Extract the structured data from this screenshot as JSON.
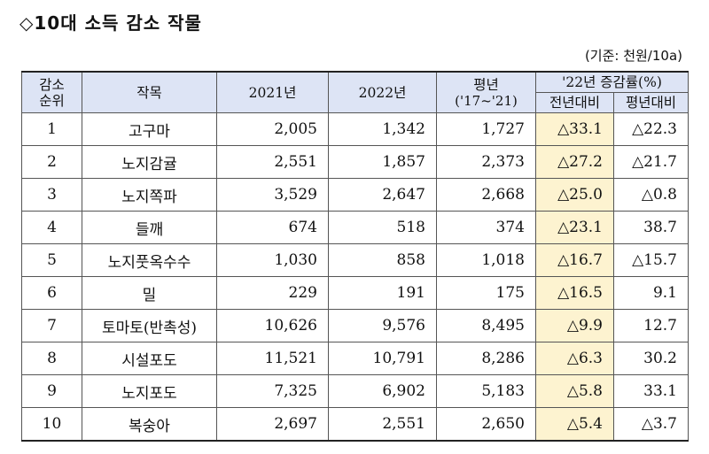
{
  "title": "◇10대 소득 감소 작물",
  "unit": "(기준: 천원/10a)",
  "headers": {
    "rank_line1": "감소",
    "rank_line2": "순위",
    "crop": "작목",
    "y2021": "2021년",
    "y2022": "2022년",
    "avg_line1": "평년",
    "avg_line2": "('17~'21)",
    "change": "'22년 증감률(%)",
    "vs_prev": "전년대비",
    "vs_avg": "평년대비"
  },
  "rows": [
    {
      "rank": "1",
      "crop": "고구마",
      "y2021": "2,005",
      "y2022": "1,342",
      "avg": "1,727",
      "vs_prev": "△33.1",
      "vs_avg": "△22.3"
    },
    {
      "rank": "2",
      "crop": "노지감귤",
      "y2021": "2,551",
      "y2022": "1,857",
      "avg": "2,373",
      "vs_prev": "△27.2",
      "vs_avg": "△21.7"
    },
    {
      "rank": "3",
      "crop": "노지쪽파",
      "y2021": "3,529",
      "y2022": "2,647",
      "avg": "2,668",
      "vs_prev": "△25.0",
      "vs_avg": "△0.8"
    },
    {
      "rank": "4",
      "crop": "들깨",
      "y2021": "674",
      "y2022": "518",
      "avg": "374",
      "vs_prev": "△23.1",
      "vs_avg": "38.7"
    },
    {
      "rank": "5",
      "crop": "노지풋옥수수",
      "y2021": "1,030",
      "y2022": "858",
      "avg": "1,018",
      "vs_prev": "△16.7",
      "vs_avg": "△15.7"
    },
    {
      "rank": "6",
      "crop": "밀",
      "y2021": "229",
      "y2022": "191",
      "avg": "175",
      "vs_prev": "△16.5",
      "vs_avg": "9.1"
    },
    {
      "rank": "7",
      "crop": "토마토(반촉성)",
      "y2021": "10,626",
      "y2022": "9,576",
      "avg": "8,495",
      "vs_prev": "△9.9",
      "vs_avg": "12.7"
    },
    {
      "rank": "8",
      "crop": "시설포도",
      "y2021": "11,521",
      "y2022": "10,791",
      "avg": "8,286",
      "vs_prev": "△6.3",
      "vs_avg": "30.2"
    },
    {
      "rank": "9",
      "crop": "노지포도",
      "y2021": "7,325",
      "y2022": "6,902",
      "avg": "5,183",
      "vs_prev": "△5.8",
      "vs_avg": "33.1"
    },
    {
      "rank": "10",
      "crop": "복숭아",
      "y2021": "2,697",
      "y2022": "2,551",
      "avg": "2,650",
      "vs_prev": "△5.4",
      "vs_avg": "△3.7"
    }
  ],
  "colors": {
    "header_bg": "#dde4f5",
    "highlight_bg": "#fdf3d0"
  }
}
